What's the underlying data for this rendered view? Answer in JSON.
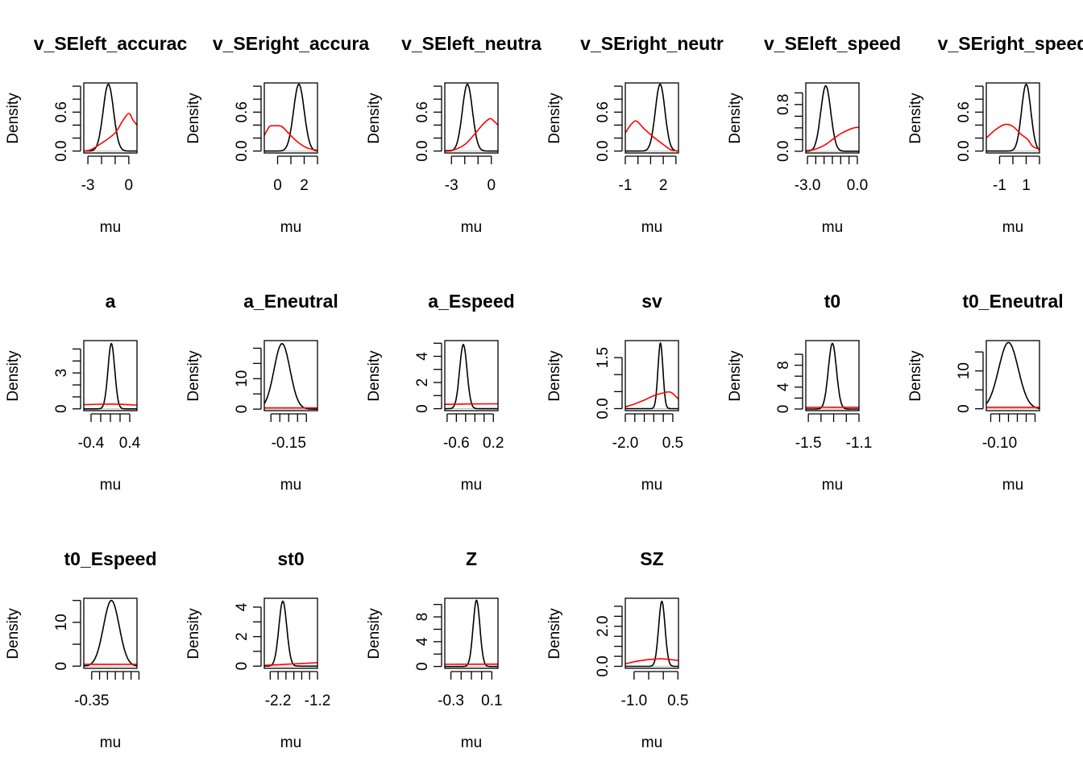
{
  "chart_data": [
    {
      "type": "line",
      "title": "v_SEleft_accurac",
      "xlabel": "mu",
      "ylabel": "Density",
      "xlim": [
        -3.3,
        0.6
      ],
      "xticks": [
        -3,
        -2,
        -1,
        0
      ],
      "xticklabels": [
        "-3",
        "",
        "",
        "0"
      ],
      "ylim": [
        -0.03,
        1.05
      ],
      "yticks": [
        0,
        0.2,
        0.4,
        0.6,
        0.8,
        1.0
      ],
      "yticklabels": [
        "0.0",
        "",
        "",
        "0.6",
        "",
        ""
      ],
      "posterior": {
        "mean": -1.5,
        "sd": 0.38,
        "peak": 1.03
      },
      "prior": [
        [
          -3.3,
          0.0
        ],
        [
          -2.8,
          0.02
        ],
        [
          -2.0,
          0.12
        ],
        [
          -1.0,
          0.28
        ],
        [
          -0.5,
          0.45
        ],
        [
          0.0,
          0.58
        ],
        [
          0.3,
          0.48
        ],
        [
          0.6,
          0.4
        ]
      ]
    },
    {
      "type": "line",
      "title": "v_SEright_accura",
      "xlabel": "mu",
      "ylabel": "Density",
      "xlim": [
        -1.0,
        3.0
      ],
      "xticks": [
        0,
        1,
        2,
        3
      ],
      "xticklabels": [
        "0",
        "",
        "2",
        ""
      ],
      "ylim": [
        -0.03,
        1.05
      ],
      "yticks": [
        0,
        0.2,
        0.4,
        0.6,
        0.8,
        1.0
      ],
      "yticklabels": [
        "0.0",
        "",
        "",
        "0.6",
        "",
        ""
      ],
      "posterior": {
        "mean": 1.6,
        "sd": 0.4,
        "peak": 1.03
      },
      "prior": [
        [
          -1.0,
          0.24
        ],
        [
          -0.6,
          0.38
        ],
        [
          -0.2,
          0.39
        ],
        [
          0.3,
          0.38
        ],
        [
          0.8,
          0.28
        ],
        [
          1.5,
          0.14
        ],
        [
          2.2,
          0.05
        ],
        [
          3.0,
          0.01
        ]
      ]
    },
    {
      "type": "line",
      "title": "v_SEleft_neutra",
      "xlabel": "mu",
      "ylabel": "Density",
      "xlim": [
        -3.5,
        0.5
      ],
      "xticks": [
        -3,
        -2,
        -1,
        0
      ],
      "xticklabels": [
        "-3",
        "",
        "",
        "0"
      ],
      "ylim": [
        -0.03,
        1.05
      ],
      "yticks": [
        0,
        0.2,
        0.4,
        0.6,
        0.8,
        1.0
      ],
      "yticklabels": [
        "0.0",
        "",
        "",
        "0.6",
        "",
        ""
      ],
      "posterior": {
        "mean": -1.8,
        "sd": 0.38,
        "peak": 1.03
      },
      "prior": [
        [
          -3.5,
          0.01
        ],
        [
          -2.8,
          0.02
        ],
        [
          -2.0,
          0.1
        ],
        [
          -1.3,
          0.25
        ],
        [
          -0.6,
          0.42
        ],
        [
          -0.1,
          0.5
        ],
        [
          0.2,
          0.46
        ],
        [
          0.5,
          0.4
        ]
      ]
    },
    {
      "type": "line",
      "title": "v_SEright_neutr",
      "xlabel": "mu",
      "ylabel": "Density",
      "xlim": [
        -1.0,
        3.2
      ],
      "xticks": [
        -1,
        0,
        1,
        2,
        3
      ],
      "xticklabels": [
        "-1",
        "",
        "",
        "2",
        ""
      ],
      "ylim": [
        -0.03,
        1.05
      ],
      "yticks": [
        0,
        0.2,
        0.4,
        0.6,
        0.8,
        1.0
      ],
      "yticklabels": [
        "0.0",
        "",
        "",
        "0.6",
        "",
        ""
      ],
      "posterior": {
        "mean": 1.75,
        "sd": 0.38,
        "peak": 1.03
      },
      "prior": [
        [
          -1.0,
          0.28
        ],
        [
          -0.5,
          0.42
        ],
        [
          -0.1,
          0.46
        ],
        [
          0.5,
          0.34
        ],
        [
          1.2,
          0.22
        ],
        [
          2.0,
          0.1
        ],
        [
          2.6,
          0.02
        ],
        [
          3.2,
          0.0
        ]
      ]
    },
    {
      "type": "line",
      "title": "v_SEleft_speed",
      "xlabel": "mu",
      "ylabel": "Density",
      "xlim": [
        -3.1,
        0.1
      ],
      "xticks": [
        -3.0,
        -2.5,
        -2.0,
        -1.5,
        -1.0,
        -0.5,
        0.0
      ],
      "xticklabels": [
        "-3.0",
        "",
        "",
        "",
        "",
        "",
        "0.0"
      ],
      "ylim": [
        -0.03,
        1.17
      ],
      "yticks": [
        0,
        0.2,
        0.4,
        0.6,
        0.8,
        1.0
      ],
      "yticklabels": [
        "0.0",
        "",
        "",
        "",
        "0.8",
        ""
      ],
      "posterior": {
        "mean": -1.9,
        "sd": 0.3,
        "peak": 1.12
      },
      "prior": [
        [
          -3.1,
          0.01
        ],
        [
          -2.6,
          0.03
        ],
        [
          -2.0,
          0.1
        ],
        [
          -1.5,
          0.2
        ],
        [
          -1.0,
          0.3
        ],
        [
          -0.5,
          0.37
        ],
        [
          -0.2,
          0.4
        ],
        [
          0.1,
          0.41
        ]
      ]
    },
    {
      "type": "line",
      "title": "v_SEright_speed",
      "xlabel": "mu",
      "ylabel": "Density",
      "xlim": [
        -2.0,
        2.0
      ],
      "xticks": [
        -1,
        0,
        1,
        2
      ],
      "xticklabels": [
        "-1",
        "",
        "1",
        ""
      ],
      "ylim": [
        -0.03,
        1.05
      ],
      "yticks": [
        0,
        0.2,
        0.4,
        0.6,
        0.8,
        1.0
      ],
      "yticklabels": [
        "0.0",
        "",
        "",
        "0.6",
        "",
        ""
      ],
      "posterior": {
        "mean": 1.0,
        "sd": 0.35,
        "peak": 1.03
      },
      "prior": [
        [
          -2.0,
          0.2
        ],
        [
          -1.3,
          0.33
        ],
        [
          -0.6,
          0.41
        ],
        [
          0.0,
          0.38
        ],
        [
          0.6,
          0.26
        ],
        [
          1.1,
          0.18
        ],
        [
          1.5,
          0.07
        ],
        [
          2.0,
          0.03
        ]
      ]
    },
    {
      "type": "line",
      "title": "a",
      "xlabel": "mu",
      "ylabel": "Density",
      "xlim": [
        -0.55,
        0.55
      ],
      "xticks": [
        -0.4,
        -0.2,
        0.0,
        0.2,
        0.4
      ],
      "xticklabels": [
        "-0.4",
        "",
        "",
        "",
        "0.4"
      ],
      "ylim": [
        -0.15,
        5.7
      ],
      "yticks": [
        0,
        1,
        2,
        3,
        4,
        5
      ],
      "yticklabels": [
        "0",
        "",
        "",
        "3",
        "",
        ""
      ],
      "posterior": {
        "mean": 0.02,
        "sd": 0.07,
        "peak": 5.45
      },
      "prior": [
        [
          -0.55,
          0.35
        ],
        [
          -0.2,
          0.39
        ],
        [
          0.0,
          0.4
        ],
        [
          0.2,
          0.38
        ],
        [
          0.55,
          0.31
        ]
      ]
    },
    {
      "type": "line",
      "title": "a_Eneutral",
      "xlabel": "mu",
      "ylabel": "Density",
      "xlim": [
        -0.205,
        -0.085
      ],
      "xticks": [
        -0.19,
        -0.17,
        -0.15,
        -0.13,
        -0.11
      ],
      "xticklabels": [
        "",
        "",
        "-0.15",
        "",
        ""
      ],
      "ylim": [
        -0.5,
        22.5
      ],
      "yticks": [
        0,
        5,
        10,
        15,
        20
      ],
      "yticklabels": [
        "0",
        "",
        "10",
        "",
        ""
      ],
      "posterior": {
        "mean": -0.165,
        "sd": 0.018,
        "peak": 21.5
      },
      "prior": [
        [
          -0.205,
          0.4
        ],
        [
          -0.145,
          0.4
        ],
        [
          -0.085,
          0.4
        ]
      ]
    },
    {
      "type": "line",
      "title": "a_Espeed",
      "xlabel": "mu",
      "ylabel": "Density",
      "xlim": [
        -0.85,
        0.3
      ],
      "xticks": [
        -0.8,
        -0.6,
        -0.4,
        -0.2,
        0.0,
        0.2
      ],
      "xticklabels": [
        "",
        "-0.6",
        "",
        "",
        "",
        "0.2"
      ],
      "ylim": [
        -0.15,
        5.2
      ],
      "yticks": [
        0,
        1,
        2,
        3,
        4,
        5
      ],
      "yticklabels": [
        "0",
        "",
        "2",
        "",
        "4",
        ""
      ],
      "posterior": {
        "mean": -0.45,
        "sd": 0.08,
        "peak": 4.9
      },
      "prior": [
        [
          -0.85,
          0.33
        ],
        [
          -0.3,
          0.36
        ],
        [
          0.3,
          0.37
        ]
      ]
    },
    {
      "type": "line",
      "title": "sv",
      "xlabel": "mu",
      "ylabel": "Density",
      "xlim": [
        -2.0,
        0.8
      ],
      "xticks": [
        -2.0,
        -1.5,
        -1.0,
        -0.5,
        0.0,
        0.5
      ],
      "xticklabels": [
        "-2.0",
        "",
        "",
        "",
        "",
        "0.5"
      ],
      "ylim": [
        -0.06,
        2.0
      ],
      "yticks": [
        0,
        0.5,
        1.0,
        1.5
      ],
      "yticklabels": [
        "0.0",
        "",
        "",
        "1.5"
      ],
      "posterior": {
        "mean": -0.15,
        "sd": 0.13,
        "peak": 1.93
      },
      "prior": [
        [
          -2.0,
          0.05
        ],
        [
          -1.5,
          0.14
        ],
        [
          -1.0,
          0.25
        ],
        [
          -0.5,
          0.38
        ],
        [
          0.0,
          0.46
        ],
        [
          0.4,
          0.48
        ],
        [
          0.8,
          0.28
        ]
      ]
    },
    {
      "type": "line",
      "title": "t0",
      "xlabel": "mu",
      "ylabel": "Density",
      "xlim": [
        -1.52,
        -1.1
      ],
      "xticks": [
        -1.5,
        -1.4,
        -1.3,
        -1.2,
        -1.1
      ],
      "xticklabels": [
        "-1.5",
        "",
        "",
        "",
        "-1.1"
      ],
      "ylim": [
        -0.3,
        12.5
      ],
      "yticks": [
        0,
        2,
        4,
        6,
        8,
        10
      ],
      "yticklabels": [
        "0",
        "",
        "4",
        "",
        "8",
        ""
      ],
      "posterior": {
        "mean": -1.31,
        "sd": 0.032,
        "peak": 12.0
      },
      "prior": [
        [
          -1.52,
          0.3
        ],
        [
          -1.1,
          0.32
        ]
      ]
    },
    {
      "type": "line",
      "title": "t0_Eneutral",
      "xlabel": "mu",
      "ylabel": "Density",
      "xlim": [
        -0.12,
        0.0
      ],
      "xticks": [
        -0.11,
        -0.09,
        -0.07,
        -0.05,
        -0.03,
        -0.01
      ],
      "xticklabels": [
        "",
        "-0.10",
        "",
        "",
        "",
        ""
      ],
      "ylim": [
        -0.5,
        18.0
      ],
      "yticks": [
        0,
        5,
        10,
        15
      ],
      "yticklabels": [
        "0",
        "",
        "10",
        ""
      ],
      "posterior": {
        "mean": -0.07,
        "sd": 0.022,
        "peak": 17.5
      },
      "prior": [
        [
          -0.12,
          0.4
        ],
        [
          0.0,
          0.4
        ]
      ]
    },
    {
      "type": "line",
      "title": "t0_Espeed",
      "xlabel": "mu",
      "ylabel": "Density",
      "xlim": [
        -0.37,
        -0.235
      ],
      "xticks": [
        -0.35,
        -0.33,
        -0.31,
        -0.29,
        -0.27,
        -0.25,
        -0.23
      ],
      "xticklabels": [
        "-0.35",
        "",
        "",
        "",
        "",
        "",
        ""
      ],
      "ylim": [
        -0.5,
        15.5
      ],
      "yticks": [
        0,
        5,
        10,
        15
      ],
      "yticklabels": [
        "0",
        "",
        "10",
        ""
      ],
      "posterior": {
        "mean": -0.3,
        "sd": 0.02,
        "peak": 15.0
      },
      "prior": [
        [
          -0.37,
          0.4
        ],
        [
          -0.235,
          0.42
        ]
      ]
    },
    {
      "type": "line",
      "title": "st0",
      "xlabel": "mu",
      "ylabel": "Density",
      "xlim": [
        -2.55,
        -1.2
      ],
      "xticks": [
        -2.4,
        -2.2,
        -2.0,
        -1.8,
        -1.6,
        -1.4,
        -1.2
      ],
      "xticklabels": [
        "",
        "-2.2",
        "",
        "",
        "",
        "",
        "-1.2"
      ],
      "ylim": [
        -0.15,
        4.6
      ],
      "yticks": [
        0,
        1,
        2,
        3,
        4
      ],
      "yticklabels": [
        "0",
        "",
        "2",
        "",
        "4"
      ],
      "posterior": {
        "mean": -2.08,
        "sd": 0.1,
        "peak": 4.4
      },
      "prior": [
        [
          -2.55,
          0.05
        ],
        [
          -1.8,
          0.15
        ],
        [
          -1.2,
          0.23
        ]
      ]
    },
    {
      "type": "line",
      "title": "Z",
      "xlabel": "mu",
      "ylabel": "Density",
      "xlim": [
        -0.36,
        0.16
      ],
      "xticks": [
        -0.3,
        -0.2,
        -0.1,
        0.0,
        0.1
      ],
      "xticklabels": [
        "-0.3",
        "",
        "",
        "",
        "0.1"
      ],
      "ylim": [
        -0.3,
        11.0
      ],
      "yticks": [
        0,
        2,
        4,
        6,
        8,
        10
      ],
      "yticklabels": [
        "0",
        "",
        "4",
        "",
        "8",
        ""
      ],
      "posterior": {
        "mean": -0.05,
        "sd": 0.033,
        "peak": 10.7
      },
      "prior": [
        [
          -0.36,
          0.35
        ],
        [
          0.16,
          0.37
        ]
      ]
    },
    {
      "type": "line",
      "title": "SZ",
      "xlabel": "mu",
      "ylabel": "Density",
      "xlim": [
        -1.3,
        0.52
      ],
      "xticks": [
        -1.0,
        -0.5,
        0.0,
        0.5
      ],
      "xticklabels": [
        "-1.0",
        "",
        "",
        "0.5"
      ],
      "ylim": [
        -0.1,
        3.4
      ],
      "yticks": [
        0,
        0.5,
        1.0,
        1.5,
        2.0,
        2.5,
        3.0
      ],
      "yticklabels": [
        "0.0",
        "",
        "",
        "",
        "2.0",
        "",
        ""
      ],
      "posterior": {
        "mean": -0.05,
        "sd": 0.11,
        "peak": 3.25
      },
      "prior": [
        [
          -1.3,
          0.13
        ],
        [
          -0.8,
          0.28
        ],
        [
          -0.3,
          0.36
        ],
        [
          0.0,
          0.37
        ],
        [
          0.52,
          0.29
        ]
      ]
    }
  ],
  "legend": {
    "posterior_color": "#000000",
    "prior_color": "#ff0000"
  }
}
